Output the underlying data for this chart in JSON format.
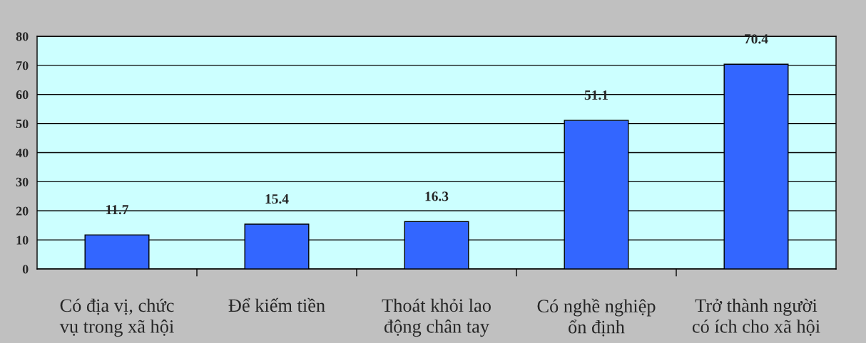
{
  "chart_data": {
    "type": "bar",
    "categories": [
      "Có địa vị, chức\nvụ trong xã hội",
      "Để kiếm tiền",
      "Thoát khỏi lao\nđộng chân tay",
      "Có nghề nghiệp\nổn định",
      "Trở thành người\ncó ích cho xã hội"
    ],
    "values": [
      11.7,
      15.4,
      16.3,
      51.1,
      70.4
    ],
    "color": "#3366ff",
    "ylim": [
      0,
      80
    ],
    "yticks": [
      0,
      10,
      20,
      30,
      40,
      50,
      60,
      70,
      80
    ],
    "grid": "y",
    "data_labels": true,
    "legend": false
  }
}
